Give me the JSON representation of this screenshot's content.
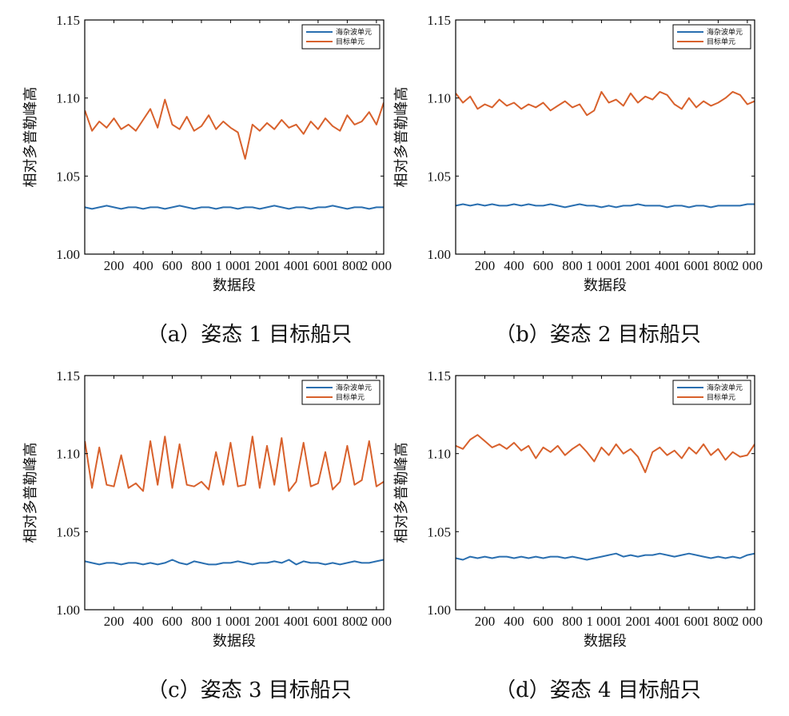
{
  "colors": {
    "sea_clutter": "#2a6fb0",
    "target": "#d8612c",
    "axis": "#000000"
  },
  "chart_data": [
    {
      "type": "line",
      "caption": "（a）姿态 1 目标船只",
      "xlabel": "数据段",
      "ylabel": "相对多普勒峰高",
      "xlim": [
        0,
        2050
      ],
      "ylim": [
        1.0,
        1.15
      ],
      "xticks": [
        200,
        400,
        600,
        800,
        1000,
        1200,
        1400,
        1600,
        1800,
        2000
      ],
      "xtick_labels": [
        "200",
        "400",
        "600",
        "800",
        "1 000",
        "1 200",
        "1 400",
        "1 600",
        "1 800",
        "2 000"
      ],
      "yticks": [
        1.0,
        1.05,
        1.1,
        1.15
      ],
      "ytick_labels": [
        "1.00",
        "1.05",
        "1.10",
        "1.15"
      ],
      "legend_position": "top-right",
      "x": [
        1,
        50,
        100,
        150,
        200,
        250,
        300,
        350,
        400,
        450,
        500,
        550,
        600,
        650,
        700,
        750,
        800,
        850,
        900,
        950,
        1000,
        1050,
        1100,
        1150,
        1200,
        1250,
        1300,
        1350,
        1400,
        1450,
        1500,
        1550,
        1600,
        1650,
        1700,
        1750,
        1800,
        1850,
        1900,
        1950,
        2000,
        2050
      ],
      "series": [
        {
          "name": "海杂波单元",
          "values": [
            1.03,
            1.029,
            1.03,
            1.031,
            1.03,
            1.029,
            1.03,
            1.03,
            1.029,
            1.03,
            1.03,
            1.029,
            1.03,
            1.031,
            1.03,
            1.029,
            1.03,
            1.03,
            1.029,
            1.03,
            1.03,
            1.029,
            1.03,
            1.03,
            1.029,
            1.03,
            1.031,
            1.03,
            1.029,
            1.03,
            1.03,
            1.029,
            1.03,
            1.03,
            1.031,
            1.03,
            1.029,
            1.03,
            1.03,
            1.029,
            1.03,
            1.03
          ]
        },
        {
          "name": "目标单元",
          "values": [
            1.092,
            1.079,
            1.085,
            1.081,
            1.087,
            1.08,
            1.083,
            1.079,
            1.086,
            1.093,
            1.081,
            1.099,
            1.083,
            1.08,
            1.088,
            1.079,
            1.082,
            1.089,
            1.08,
            1.085,
            1.081,
            1.078,
            1.061,
            1.083,
            1.079,
            1.084,
            1.08,
            1.086,
            1.081,
            1.083,
            1.077,
            1.085,
            1.08,
            1.087,
            1.082,
            1.079,
            1.089,
            1.083,
            1.085,
            1.091,
            1.083,
            1.097
          ]
        }
      ]
    },
    {
      "type": "line",
      "caption": "（b）姿态 2 目标船只",
      "xlabel": "数据段",
      "ylabel": "相对多普勒峰高",
      "xlim": [
        0,
        2050
      ],
      "ylim": [
        1.0,
        1.15
      ],
      "xticks": [
        200,
        400,
        600,
        800,
        1000,
        1200,
        1400,
        1600,
        1800,
        2000
      ],
      "xtick_labels": [
        "200",
        "400",
        "600",
        "800",
        "1 000",
        "1 200",
        "1 400",
        "1 600",
        "1 800",
        "2 000"
      ],
      "yticks": [
        1.0,
        1.05,
        1.1,
        1.15
      ],
      "ytick_labels": [
        "1.00",
        "1.05",
        "1.10",
        "1.15"
      ],
      "legend_position": "top-right",
      "x": [
        1,
        50,
        100,
        150,
        200,
        250,
        300,
        350,
        400,
        450,
        500,
        550,
        600,
        650,
        700,
        750,
        800,
        850,
        900,
        950,
        1000,
        1050,
        1100,
        1150,
        1200,
        1250,
        1300,
        1350,
        1400,
        1450,
        1500,
        1550,
        1600,
        1650,
        1700,
        1750,
        1800,
        1850,
        1900,
        1950,
        2000,
        2050
      ],
      "series": [
        {
          "name": "海杂波单元",
          "values": [
            1.031,
            1.032,
            1.031,
            1.032,
            1.031,
            1.032,
            1.031,
            1.031,
            1.032,
            1.031,
            1.032,
            1.031,
            1.031,
            1.032,
            1.031,
            1.03,
            1.031,
            1.032,
            1.031,
            1.031,
            1.03,
            1.031,
            1.03,
            1.031,
            1.031,
            1.032,
            1.031,
            1.031,
            1.031,
            1.03,
            1.031,
            1.031,
            1.03,
            1.031,
            1.031,
            1.03,
            1.031,
            1.031,
            1.031,
            1.031,
            1.032,
            1.032
          ]
        },
        {
          "name": "目标单元",
          "values": [
            1.103,
            1.097,
            1.101,
            1.093,
            1.096,
            1.094,
            1.099,
            1.095,
            1.097,
            1.093,
            1.096,
            1.094,
            1.097,
            1.092,
            1.095,
            1.098,
            1.094,
            1.096,
            1.089,
            1.092,
            1.104,
            1.097,
            1.099,
            1.095,
            1.103,
            1.097,
            1.101,
            1.099,
            1.104,
            1.102,
            1.096,
            1.093,
            1.1,
            1.094,
            1.098,
            1.095,
            1.097,
            1.1,
            1.104,
            1.102,
            1.096,
            1.098
          ]
        }
      ]
    },
    {
      "type": "line",
      "caption": "（c）姿态 3 目标船只",
      "xlabel": "数据段",
      "ylabel": "相对多普勒峰高",
      "xlim": [
        0,
        2050
      ],
      "ylim": [
        1.0,
        1.15
      ],
      "xticks": [
        200,
        400,
        600,
        800,
        1000,
        1200,
        1400,
        1600,
        1800,
        2000
      ],
      "xtick_labels": [
        "200",
        "400",
        "600",
        "800",
        "1 000",
        "1 200",
        "1 400",
        "1 600",
        "1 800",
        "2 000"
      ],
      "yticks": [
        1.0,
        1.05,
        1.1,
        1.15
      ],
      "ytick_labels": [
        "1.00",
        "1.05",
        "1.10",
        "1.15"
      ],
      "legend_position": "top-right",
      "x": [
        1,
        50,
        100,
        150,
        200,
        250,
        300,
        350,
        400,
        450,
        500,
        550,
        600,
        650,
        700,
        750,
        800,
        850,
        900,
        950,
        1000,
        1050,
        1100,
        1150,
        1200,
        1250,
        1300,
        1350,
        1400,
        1450,
        1500,
        1550,
        1600,
        1650,
        1700,
        1750,
        1800,
        1850,
        1900,
        1950,
        2000,
        2050
      ],
      "series": [
        {
          "name": "海杂波单元",
          "values": [
            1.031,
            1.03,
            1.029,
            1.03,
            1.03,
            1.029,
            1.03,
            1.03,
            1.029,
            1.03,
            1.029,
            1.03,
            1.032,
            1.03,
            1.029,
            1.031,
            1.03,
            1.029,
            1.029,
            1.03,
            1.03,
            1.031,
            1.03,
            1.029,
            1.03,
            1.03,
            1.031,
            1.03,
            1.032,
            1.029,
            1.031,
            1.03,
            1.03,
            1.029,
            1.03,
            1.029,
            1.03,
            1.031,
            1.03,
            1.03,
            1.031,
            1.032
          ]
        },
        {
          "name": "目标单元",
          "values": [
            1.108,
            1.078,
            1.104,
            1.08,
            1.079,
            1.099,
            1.078,
            1.081,
            1.076,
            1.108,
            1.08,
            1.111,
            1.078,
            1.106,
            1.08,
            1.079,
            1.082,
            1.077,
            1.101,
            1.08,
            1.107,
            1.079,
            1.08,
            1.111,
            1.078,
            1.105,
            1.08,
            1.11,
            1.076,
            1.082,
            1.107,
            1.079,
            1.081,
            1.101,
            1.077,
            1.082,
            1.105,
            1.08,
            1.083,
            1.108,
            1.079,
            1.082
          ]
        }
      ]
    },
    {
      "type": "line",
      "caption": "（d）姿态 4 目标船只",
      "xlabel": "数据段",
      "ylabel": "相对多普勒峰高",
      "xlim": [
        0,
        2050
      ],
      "ylim": [
        1.0,
        1.15
      ],
      "xticks": [
        200,
        400,
        600,
        800,
        1000,
        1200,
        1400,
        1600,
        1800,
        2000
      ],
      "xtick_labels": [
        "200",
        "400",
        "600",
        "800",
        "1 000",
        "1 200",
        "1 400",
        "1 600",
        "1 800",
        "2 000"
      ],
      "yticks": [
        1.0,
        1.05,
        1.1,
        1.15
      ],
      "ytick_labels": [
        "1.00",
        "1.05",
        "1.10",
        "1.15"
      ],
      "legend_position": "top-right",
      "x": [
        1,
        50,
        100,
        150,
        200,
        250,
        300,
        350,
        400,
        450,
        500,
        550,
        600,
        650,
        700,
        750,
        800,
        850,
        900,
        950,
        1000,
        1050,
        1100,
        1150,
        1200,
        1250,
        1300,
        1350,
        1400,
        1450,
        1500,
        1550,
        1600,
        1650,
        1700,
        1750,
        1800,
        1850,
        1900,
        1950,
        2000,
        2050
      ],
      "series": [
        {
          "name": "海杂波单元",
          "values": [
            1.033,
            1.032,
            1.034,
            1.033,
            1.034,
            1.033,
            1.034,
            1.034,
            1.033,
            1.034,
            1.033,
            1.034,
            1.033,
            1.034,
            1.034,
            1.033,
            1.034,
            1.033,
            1.032,
            1.033,
            1.034,
            1.035,
            1.036,
            1.034,
            1.035,
            1.034,
            1.035,
            1.035,
            1.036,
            1.035,
            1.034,
            1.035,
            1.036,
            1.035,
            1.034,
            1.033,
            1.034,
            1.033,
            1.034,
            1.033,
            1.035,
            1.036
          ]
        },
        {
          "name": "目标单元",
          "values": [
            1.105,
            1.103,
            1.109,
            1.112,
            1.108,
            1.104,
            1.106,
            1.103,
            1.107,
            1.102,
            1.105,
            1.097,
            1.104,
            1.101,
            1.105,
            1.099,
            1.103,
            1.106,
            1.101,
            1.095,
            1.104,
            1.099,
            1.106,
            1.1,
            1.103,
            1.098,
            1.088,
            1.101,
            1.104,
            1.099,
            1.102,
            1.097,
            1.104,
            1.1,
            1.106,
            1.099,
            1.103,
            1.096,
            1.101,
            1.098,
            1.099,
            1.106
          ]
        }
      ]
    }
  ]
}
